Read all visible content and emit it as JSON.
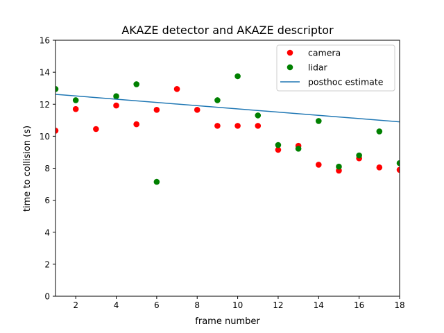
{
  "chart_data": {
    "type": "scatter",
    "title": "AKAZE detector and AKAZE descriptor",
    "xlabel": "frame number",
    "ylabel": "time to collision (s)",
    "xlim": [
      1,
      18
    ],
    "ylim": [
      0,
      16
    ],
    "xticks": [
      2,
      4,
      6,
      8,
      10,
      12,
      14,
      16,
      18
    ],
    "yticks": [
      0,
      2,
      4,
      6,
      8,
      10,
      12,
      14,
      16
    ],
    "grid": false,
    "legend_position": "top-right",
    "series": [
      {
        "name": "camera",
        "kind": "scatter",
        "color": "#ff0000",
        "x": [
          1,
          2,
          3,
          4,
          5,
          6,
          7,
          8,
          9,
          10,
          11,
          12,
          13,
          14,
          15,
          16,
          17,
          18
        ],
        "y": [
          10.35,
          11.7,
          10.45,
          11.92,
          10.75,
          11.65,
          12.95,
          11.65,
          10.65,
          10.65,
          10.65,
          9.15,
          9.4,
          8.22,
          7.85,
          8.62,
          8.05,
          7.9
        ]
      },
      {
        "name": "lidar",
        "kind": "scatter",
        "color": "#008000",
        "x": [
          1,
          2,
          4,
          5,
          6,
          9,
          10,
          11,
          12,
          13,
          14,
          15,
          16,
          17,
          18
        ],
        "y": [
          12.95,
          12.25,
          12.5,
          13.25,
          7.15,
          12.25,
          13.75,
          11.3,
          9.45,
          9.22,
          10.95,
          8.1,
          8.8,
          10.3,
          8.32
        ]
      },
      {
        "name": "posthoc estimate",
        "kind": "line",
        "color": "#1f77b4",
        "x": [
          1,
          18
        ],
        "y": [
          12.62,
          10.9
        ]
      }
    ]
  }
}
